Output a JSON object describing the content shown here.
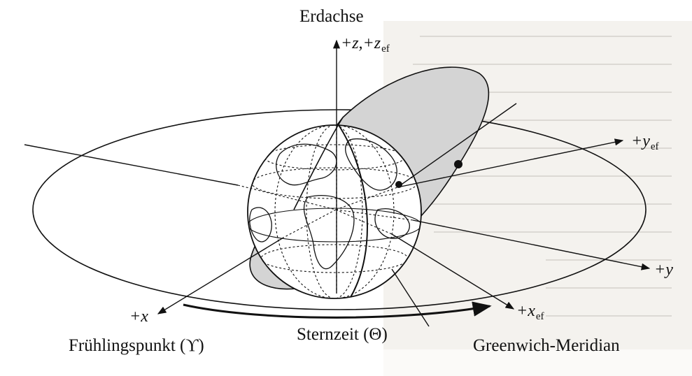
{
  "colors": {
    "ink": "#111111",
    "paper": "#ffffff",
    "orbit_fill": "#d4d4d4",
    "page_shadow": "#f1efeb"
  },
  "icons": {
    "earth": "globe-icon",
    "satellite": "satellite-dot-icon"
  },
  "labels": {
    "earth_axis": "Erdachse",
    "z_axis": "+z,+z",
    "z_axis_sub": "ef",
    "y_ef_axis": "+y",
    "y_ef_sub": "ef",
    "y_axis": "+y",
    "x_axis": "+x",
    "x_ef_axis": "+x",
    "x_ef_sub": "ef",
    "vernal_equinox": "Frühlingspunkt (ϒ)",
    "sidereal_time": "Sternzeit (Θ)",
    "greenwich_meridian": "Greenwich-Meridian"
  }
}
